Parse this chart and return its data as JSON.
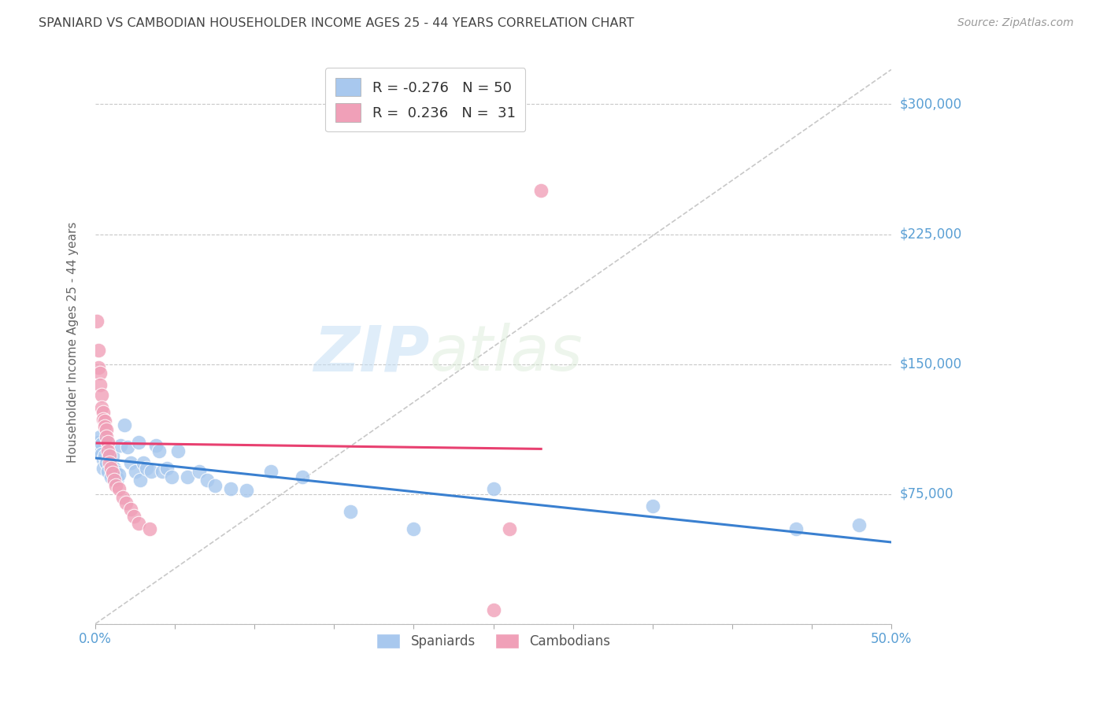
{
  "title": "SPANIARD VS CAMBODIAN HOUSEHOLDER INCOME AGES 25 - 44 YEARS CORRELATION CHART",
  "source": "Source: ZipAtlas.com",
  "ylabel": "Householder Income Ages 25 - 44 years",
  "xlim": [
    0.0,
    0.5
  ],
  "ylim": [
    0,
    325000
  ],
  "yticks": [
    0,
    75000,
    150000,
    225000,
    300000
  ],
  "ytick_labels": [
    "",
    "$75,000",
    "$150,000",
    "$225,000",
    "$300,000"
  ],
  "bg_color": "#ffffff",
  "grid_color": "#c8c8c8",
  "title_color": "#444444",
  "source_color": "#999999",
  "spaniard_color": "#a8c8ee",
  "cambodian_color": "#f0a0b8",
  "spaniard_line_color": "#3a80d0",
  "cambodian_line_color": "#e84070",
  "diagonal_color": "#c8c8c8",
  "right_label_color": "#5a9fd4",
  "legend_R_spaniard": "-0.276",
  "legend_N_spaniard": "50",
  "legend_R_cambodian": "0.236",
  "legend_N_cambodian": "31",
  "spaniard_x": [
    0.001,
    0.002,
    0.003,
    0.003,
    0.004,
    0.004,
    0.005,
    0.005,
    0.006,
    0.007,
    0.008,
    0.008,
    0.009,
    0.01,
    0.01,
    0.011,
    0.012,
    0.013,
    0.014,
    0.015,
    0.016,
    0.018,
    0.02,
    0.022,
    0.025,
    0.027,
    0.028,
    0.03,
    0.032,
    0.035,
    0.038,
    0.04,
    0.042,
    0.045,
    0.048,
    0.052,
    0.058,
    0.065,
    0.07,
    0.075,
    0.085,
    0.095,
    0.11,
    0.13,
    0.16,
    0.2,
    0.25,
    0.35,
    0.44,
    0.48
  ],
  "spaniard_y": [
    100000,
    105000,
    108000,
    100000,
    104000,
    98000,
    95000,
    90000,
    97000,
    93000,
    105000,
    88000,
    98000,
    93000,
    85000,
    97000,
    90000,
    88000,
    84000,
    86000,
    103000,
    115000,
    102000,
    93000,
    88000,
    105000,
    83000,
    93000,
    90000,
    88000,
    103000,
    100000,
    88000,
    90000,
    85000,
    100000,
    85000,
    88000,
    83000,
    80000,
    78000,
    77000,
    88000,
    85000,
    65000,
    55000,
    78000,
    68000,
    55000,
    57000
  ],
  "cambodian_x": [
    0.001,
    0.002,
    0.002,
    0.003,
    0.003,
    0.004,
    0.004,
    0.005,
    0.005,
    0.006,
    0.006,
    0.007,
    0.007,
    0.008,
    0.008,
    0.009,
    0.009,
    0.01,
    0.011,
    0.012,
    0.013,
    0.015,
    0.017,
    0.019,
    0.022,
    0.024,
    0.027,
    0.034,
    0.25,
    0.26,
    0.28
  ],
  "cambodian_y": [
    175000,
    158000,
    148000,
    145000,
    138000,
    132000,
    125000,
    122000,
    118000,
    117000,
    114000,
    112000,
    108000,
    105000,
    100000,
    97000,
    93000,
    90000,
    87000,
    83000,
    80000,
    78000,
    73000,
    70000,
    66000,
    62000,
    58000,
    55000,
    8000,
    55000,
    250000
  ]
}
